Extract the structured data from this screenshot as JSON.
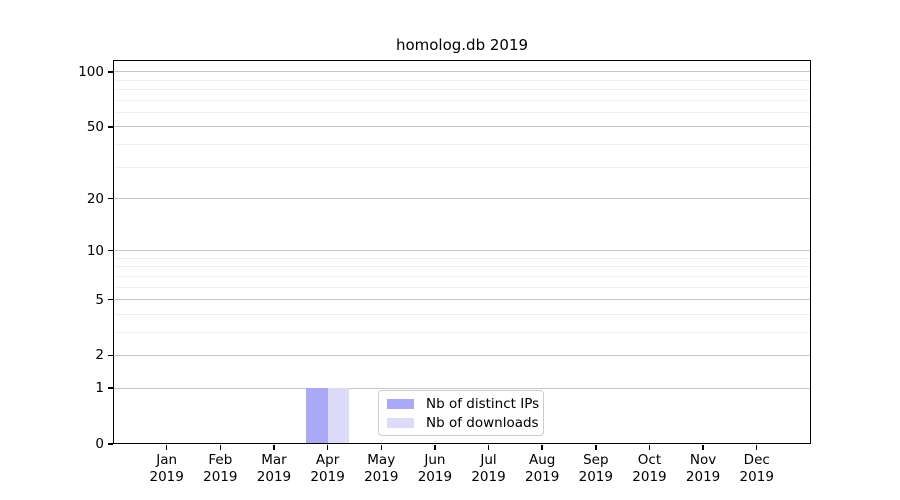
{
  "chart_data": {
    "type": "bar",
    "title": "homolog.db 2019",
    "categories": [
      "Jan",
      "Feb",
      "Mar",
      "Apr",
      "May",
      "Jun",
      "Jul",
      "Aug",
      "Sep",
      "Oct",
      "Nov",
      "Dec"
    ],
    "category_year_label": "2019",
    "series": [
      {
        "name": "Nb of distinct IPs",
        "color": "#a9a9f5",
        "values": [
          0,
          0,
          0,
          1,
          0,
          0,
          0,
          0,
          0,
          0,
          0,
          0
        ]
      },
      {
        "name": "Nb of downloads",
        "color": "#dcdcf9",
        "values": [
          0,
          0,
          0,
          1,
          0,
          0,
          0,
          0,
          0,
          0,
          0,
          0
        ]
      }
    ],
    "yscale": "log1p",
    "ylim": [
      0,
      116
    ],
    "y_major_ticks": [
      0,
      1,
      2,
      5,
      10,
      20,
      50,
      100
    ],
    "y_minor_ticks": [
      3,
      4,
      6,
      7,
      8,
      9,
      30,
      40,
      60,
      70,
      80,
      90
    ],
    "grid": true,
    "legend": {
      "position": "lower-center"
    },
    "colors": {
      "grid_major": "#c6c6c6",
      "grid_minor": "#efefef",
      "axis": "#000000",
      "text": "#000000",
      "legend_border": "#cccccc",
      "background": "#ffffff"
    }
  }
}
